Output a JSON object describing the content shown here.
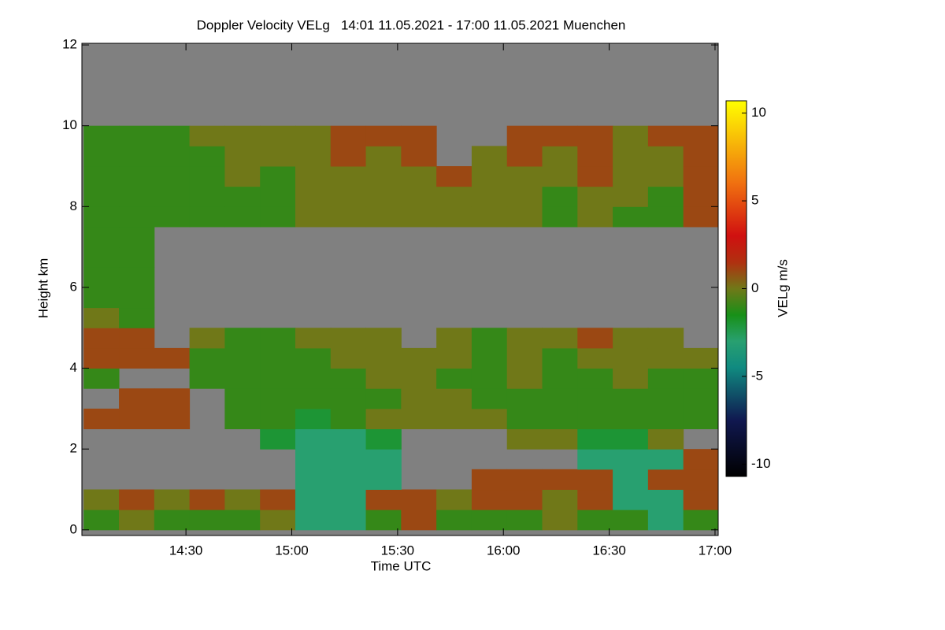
{
  "chart_data": {
    "type": "heatmap",
    "title": "Doppler Velocity VELg   14:01 11.05.2021 - 17:00 11.05.2021 Muenchen",
    "x_label": "Time UTC",
    "y_label": "Height km",
    "colorbar_label": "VELg m/s",
    "background": "#808080",
    "xlim": [
      840.5,
      1020.9
    ],
    "xticks": [
      {
        "value": 870,
        "label": "14:30"
      },
      {
        "value": 900,
        "label": "15:00"
      },
      {
        "value": 930,
        "label": "15:30"
      },
      {
        "value": 960,
        "label": "16:00"
      },
      {
        "value": 990,
        "label": "16:30"
      },
      {
        "value": 1020,
        "label": "17:00"
      }
    ],
    "ylim": [
      -0.14,
      12.04
    ],
    "yticks": [
      0,
      2,
      4,
      6,
      8,
      10,
      12
    ],
    "zlim": [
      -10.7,
      10.7
    ],
    "zticks": [
      -10,
      -5,
      0,
      5,
      10
    ],
    "colorscale": [
      [
        -10.7,
        "#000000"
      ],
      [
        -7.5,
        "#101850"
      ],
      [
        -4.5,
        "#108a80"
      ],
      [
        -3,
        "#28a070"
      ],
      [
        -1.5,
        "#189018"
      ],
      [
        0,
        "#707818"
      ],
      [
        1.5,
        "#b03010"
      ],
      [
        3,
        "#d01010"
      ],
      [
        6,
        "#f07010"
      ],
      [
        10.7,
        "#ffff00"
      ]
    ],
    "x_edges": [
      841,
      851,
      861,
      871,
      881,
      891,
      901,
      911,
      921,
      931,
      941,
      951,
      961,
      971,
      981,
      991,
      1001,
      1011,
      1021
    ],
    "y_edges": [
      0,
      0.5,
      1,
      1.5,
      2,
      2.5,
      3,
      3.5,
      4,
      4.5,
      5,
      5.5,
      6,
      6.5,
      7,
      7.5,
      8,
      8.5,
      9,
      9.5,
      10,
      10.5,
      11,
      11.5,
      12
    ],
    "z": [
      [
        -1,
        0,
        -1,
        -1,
        -1,
        0,
        -3,
        -3,
        -1,
        1,
        -1,
        -1,
        -1,
        0,
        -1,
        -1,
        -3,
        -1
      ],
      [
        0,
        1,
        0,
        1,
        0,
        1,
        -3,
        -3,
        1,
        1,
        0,
        1,
        1,
        0,
        1,
        -3,
        -3,
        1
      ],
      [
        null,
        null,
        null,
        null,
        null,
        null,
        -3,
        -3,
        -3,
        null,
        null,
        1,
        1,
        1,
        1,
        -3,
        1,
        1
      ],
      [
        null,
        null,
        null,
        null,
        null,
        null,
        -3,
        -3,
        -3,
        null,
        null,
        null,
        null,
        null,
        -3,
        -3,
        -3,
        1
      ],
      [
        null,
        null,
        null,
        null,
        null,
        -2,
        -3,
        -3,
        -2,
        null,
        null,
        null,
        0,
        0,
        -2,
        -2,
        0,
        null
      ],
      [
        1,
        1,
        1,
        null,
        -1,
        -1,
        -2,
        -1,
        0,
        0,
        0,
        0,
        -1,
        -1,
        -1,
        -1,
        -1,
        -1
      ],
      [
        null,
        1,
        1,
        null,
        -1,
        -1,
        -1,
        -1,
        -1,
        0,
        0,
        -1,
        -1,
        -1,
        -1,
        -1,
        -1,
        -1
      ],
      [
        -1,
        null,
        null,
        -1,
        -1,
        -1,
        -1,
        -1,
        0,
        0,
        -1,
        -1,
        0,
        -1,
        -1,
        0,
        -1,
        -1
      ],
      [
        1,
        1,
        1,
        -1,
        -1,
        -1,
        -1,
        0,
        0,
        0,
        0,
        -1,
        0,
        -1,
        0,
        0,
        0,
        0
      ],
      [
        1,
        1,
        null,
        0,
        -1,
        -1,
        0,
        0,
        0,
        null,
        0,
        -1,
        0,
        0,
        1,
        0,
        0,
        null
      ],
      [
        0,
        -1,
        null,
        null,
        null,
        null,
        null,
        null,
        null,
        null,
        null,
        null,
        null,
        null,
        null,
        null,
        null,
        null
      ],
      [
        -1,
        -1,
        null,
        null,
        null,
        null,
        null,
        null,
        null,
        null,
        null,
        null,
        null,
        null,
        null,
        null,
        null,
        null
      ],
      [
        -1,
        -1,
        null,
        null,
        null,
        null,
        null,
        null,
        null,
        null,
        null,
        null,
        null,
        null,
        null,
        null,
        null,
        null
      ],
      [
        -1,
        -1,
        null,
        null,
        null,
        null,
        null,
        null,
        null,
        null,
        null,
        null,
        null,
        null,
        null,
        null,
        null,
        null
      ],
      [
        -1,
        -1,
        null,
        null,
        null,
        null,
        null,
        null,
        null,
        null,
        null,
        null,
        null,
        null,
        null,
        null,
        null,
        null
      ],
      [
        -1,
        -1,
        -1,
        -1,
        -1,
        -1,
        0,
        0,
        0,
        0,
        0,
        0,
        0,
        -1,
        0,
        -1,
        -1,
        1
      ],
      [
        -1,
        -1,
        -1,
        -1,
        -1,
        -1,
        0,
        0,
        0,
        0,
        0,
        0,
        0,
        -1,
        0,
        0,
        -1,
        1
      ],
      [
        -1,
        -1,
        -1,
        -1,
        0,
        -1,
        0,
        0,
        0,
        0,
        1,
        0,
        0,
        0,
        1,
        0,
        0,
        1
      ],
      [
        -1,
        -1,
        -1,
        -1,
        0,
        0,
        0,
        1,
        0,
        1,
        null,
        0,
        1,
        0,
        1,
        0,
        0,
        1
      ],
      [
        -1,
        -1,
        -1,
        0,
        0,
        0,
        0,
        1,
        1,
        1,
        null,
        null,
        1,
        1,
        1,
        0,
        1,
        1
      ],
      [
        null,
        null,
        null,
        null,
        null,
        null,
        null,
        null,
        null,
        null,
        null,
        null,
        null,
        null,
        null,
        null,
        null,
        null
      ],
      [
        null,
        null,
        null,
        null,
        null,
        null,
        null,
        null,
        null,
        null,
        null,
        null,
        null,
        null,
        null,
        null,
        null,
        null
      ],
      [
        null,
        null,
        null,
        null,
        null,
        null,
        null,
        null,
        null,
        null,
        null,
        null,
        null,
        null,
        null,
        null,
        null,
        null
      ],
      [
        null,
        null,
        null,
        null,
        null,
        null,
        null,
        null,
        null,
        null,
        null,
        null,
        null,
        null,
        null,
        null,
        null,
        null
      ]
    ]
  }
}
